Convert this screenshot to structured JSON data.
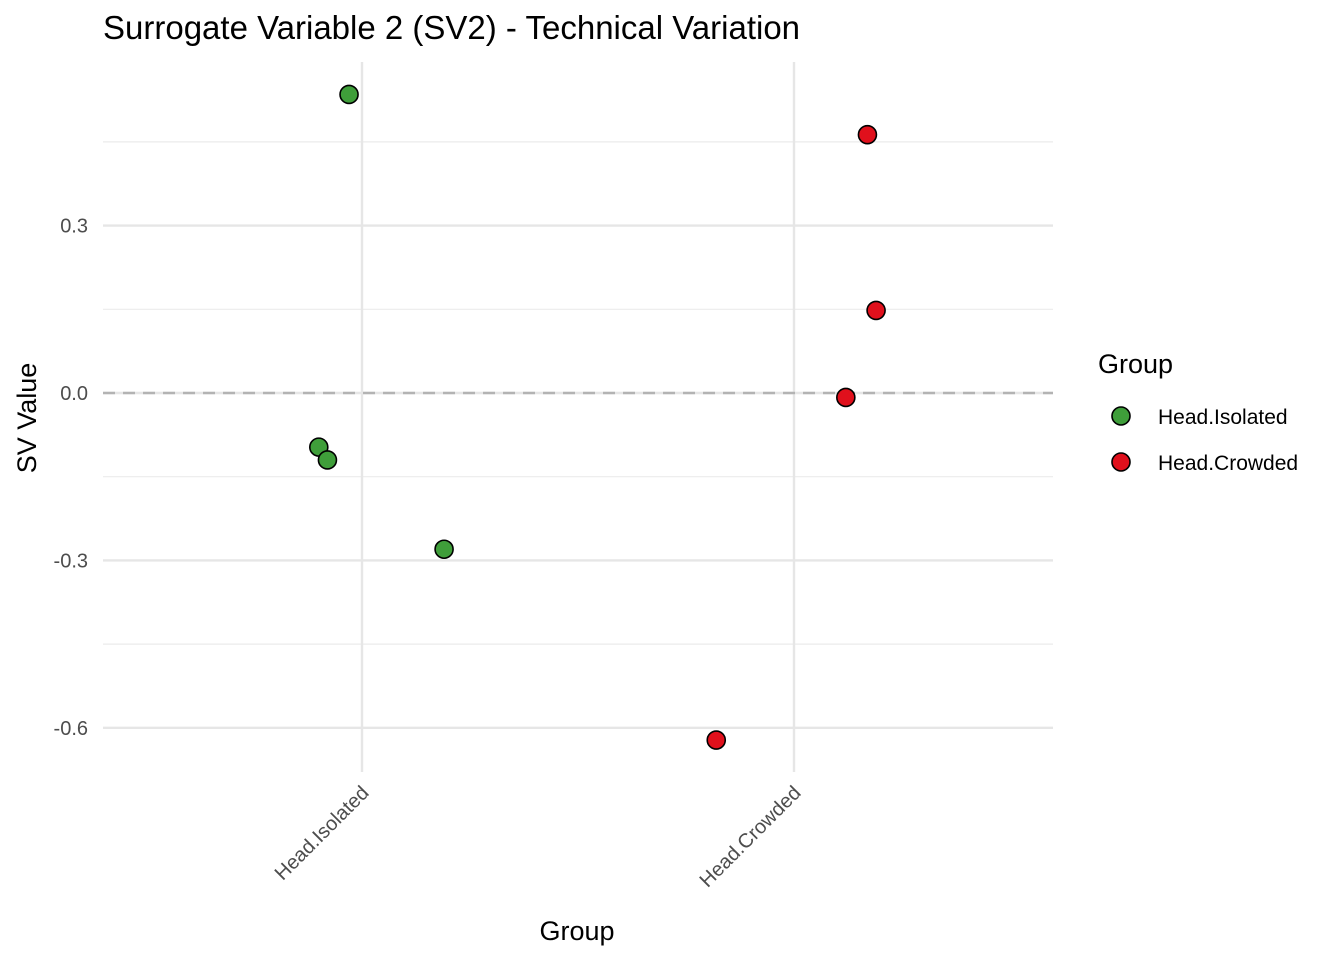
{
  "chart_data": {
    "type": "scatter",
    "title": "Surrogate Variable 2 (SV2) - Technical Variation",
    "xlabel": "Group",
    "ylabel": "SV Value",
    "categories": [
      "Head.Isolated",
      "Head.Crowded"
    ],
    "ylim": [
      -0.68,
      0.6
    ],
    "yticks": [
      -0.6,
      -0.3,
      0.0,
      0.3
    ],
    "ytick_labels": [
      "-0.6",
      "-0.3",
      "0.0",
      "0.3"
    ],
    "reference_line": {
      "y": 0.0,
      "style": "dashed",
      "color": "#b3b3b3"
    },
    "grid": true,
    "legend": {
      "title": "Group",
      "position": "right",
      "entries": [
        {
          "label": "Head.Isolated",
          "color": "#3f9e3a"
        },
        {
          "label": "Head.Crowded",
          "color": "#e0101c"
        }
      ]
    },
    "series": [
      {
        "name": "Head.Isolated",
        "color": "#3f9e3a",
        "points": [
          {
            "x_offset": -0.03,
            "y": 0.535
          },
          {
            "x_offset": -0.1,
            "y": -0.097
          },
          {
            "x_offset": -0.08,
            "y": -0.12
          },
          {
            "x_offset": 0.19,
            "y": -0.28
          }
        ]
      },
      {
        "name": "Head.Crowded",
        "color": "#e0101c",
        "points": [
          {
            "x_offset": 0.17,
            "y": 0.463
          },
          {
            "x_offset": 0.19,
            "y": 0.148
          },
          {
            "x_offset": 0.12,
            "y": -0.008
          },
          {
            "x_offset": -0.18,
            "y": -0.622
          }
        ]
      }
    ]
  }
}
